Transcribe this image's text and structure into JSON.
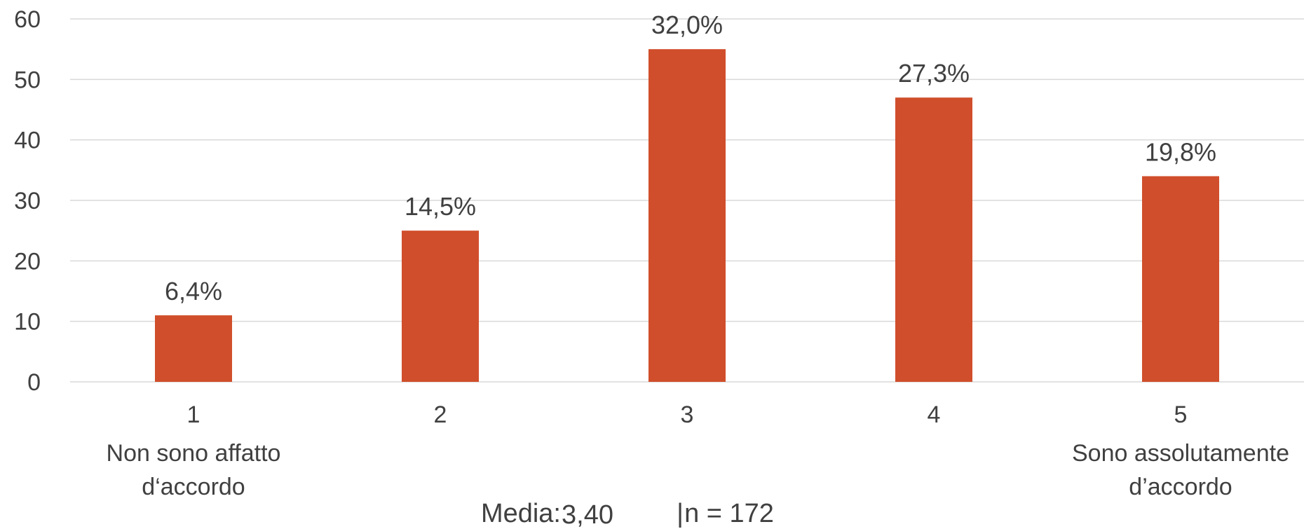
{
  "chart_data": {
    "type": "bar",
    "categories": [
      "1",
      "2",
      "3",
      "4",
      "5"
    ],
    "category_sublabels": [
      [
        "Non sono affatto",
        "d‘accordo"
      ],
      [],
      [],
      [],
      [
        "Sono assolutamente",
        "d’accordo"
      ]
    ],
    "values": [
      11,
      25,
      55,
      47,
      34
    ],
    "data_labels": [
      "6,4%",
      "14,5%",
      "32,0%",
      "27,3%",
      "19,8%"
    ],
    "yticks": [
      "0",
      "10",
      "20",
      "30",
      "40",
      "50",
      "60"
    ],
    "ylim": [
      0,
      60
    ],
    "grid": true,
    "bar_color": "#D04E2B",
    "grid_color": "#D9D9D9",
    "text_color": "#404040"
  },
  "footer": {
    "media_label": "Media:",
    "media_value": "3,40",
    "separator": "|",
    "n_text": "n = 172"
  }
}
